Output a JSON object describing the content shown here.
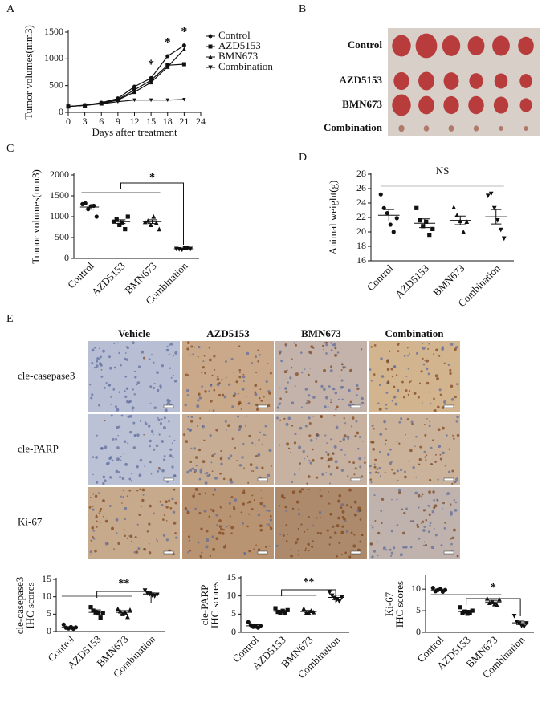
{
  "chart_data": [
    {
      "type": "line",
      "panel": "A",
      "xlabel": "Days after treatment",
      "ylabel": "Tumor volumes(mm3)",
      "x": [
        0,
        3,
        6,
        9,
        12,
        15,
        18,
        21
      ],
      "xlim": [
        0,
        24
      ],
      "xticks": [
        0,
        3,
        6,
        9,
        12,
        15,
        18,
        21,
        24
      ],
      "ylim": [
        0,
        1500
      ],
      "yticks": [
        0,
        500,
        1000,
        1500
      ],
      "series": [
        {
          "name": "Control",
          "color": "#111111",
          "values": [
            110,
            135,
            180,
            260,
            480,
            640,
            1050,
            1250
          ]
        },
        {
          "name": "AZD5153",
          "color": "#111111",
          "values": [
            110,
            130,
            170,
            240,
            420,
            600,
            880,
            900
          ]
        },
        {
          "name": "BMN673",
          "color": "#111111",
          "values": [
            110,
            130,
            165,
            230,
            380,
            560,
            850,
            1180
          ]
        },
        {
          "name": "Combination",
          "color": "#111111",
          "values": [
            110,
            130,
            160,
            200,
            230,
            230,
            230,
            240
          ]
        }
      ],
      "annotations": [
        {
          "text": "*",
          "x": 15
        },
        {
          "text": "*",
          "x": 18
        },
        {
          "text": "*",
          "x": 21
        }
      ]
    },
    {
      "type": "dot",
      "panel": "C",
      "ylabel": "Tumor volumes(mm3)",
      "categories": [
        "Control",
        "AZD5153",
        "BMN673",
        "Combination"
      ],
      "ylim": [
        0,
        2000
      ],
      "yticks": [
        0,
        500,
        1000,
        1500,
        2000
      ],
      "points": [
        [
          1300,
          1320,
          1180,
          1250,
          1260,
          1000
        ],
        [
          880,
          950,
          800,
          860,
          700,
          1000
        ],
        [
          870,
          900,
          800,
          1000,
          850,
          700
        ],
        [
          230,
          220,
          210,
          240,
          250,
          230
        ]
      ],
      "means": [
        1230,
        880,
        880,
        230
      ],
      "errors": [
        50,
        45,
        45,
        10
      ],
      "annotation": "*"
    },
    {
      "type": "dot",
      "panel": "D",
      "ylabel": "Animal weight(g)",
      "categories": [
        "Control",
        "AZD5153",
        "BMN673",
        "Combination"
      ],
      "ylim": [
        16,
        28
      ],
      "yticks": [
        16,
        18,
        20,
        22,
        24,
        26,
        28
      ],
      "points": [
        [
          25.2,
          23.3,
          22.6,
          21.0,
          20.0,
          21.9
        ],
        [
          23.3,
          21.6,
          20.8,
          21.4,
          19.6,
          20.4
        ],
        [
          23.4,
          22.3,
          21.5,
          20.0,
          21.4
        ],
        [
          25.0,
          25.3,
          23.3,
          21.6,
          20.3,
          19.1
        ]
      ],
      "means": [
        22.3,
        21.2,
        21.6,
        22.1
      ],
      "errors": [
        0.8,
        0.6,
        0.6,
        1.0
      ],
      "annotation": "NS"
    },
    {
      "type": "dot",
      "ylabel": [
        "cle-casepase3",
        "IHC scores"
      ],
      "categories": [
        "Control",
        "AZD5153",
        "BMN673",
        "Combination"
      ],
      "ylim": [
        0,
        15
      ],
      "yticks": [
        0,
        5,
        10,
        15
      ],
      "points": [
        [
          2.0,
          1.1,
          0.9,
          1.3,
          0.8,
          1.2
        ],
        [
          7.0,
          6.0,
          5.5,
          5.2,
          4.0,
          5.3
        ],
        [
          6.5,
          5.8,
          5.0,
          5.5,
          4.2,
          6.2
        ],
        [
          11.8,
          11.0,
          10.8,
          10.4,
          10.2,
          10.6
        ]
      ],
      "means": [
        1.2,
        5.5,
        5.5,
        10.8
      ],
      "errors": [
        0.2,
        0.7,
        0.5,
        0.3
      ],
      "annotation": "**"
    },
    {
      "type": "dot",
      "ylabel": [
        "cle-PARP",
        "IHC scores"
      ],
      "categories": [
        "Control",
        "AZD5153",
        "BMN673",
        "Combination"
      ],
      "ylim": [
        0,
        15
      ],
      "yticks": [
        0,
        5,
        10,
        15
      ],
      "points": [
        [
          2.8,
          2.0,
          1.5,
          1.6,
          1.3,
          1.8
        ],
        [
          6.6,
          5.6,
          5.4,
          5.9,
          5.2,
          6.1
        ],
        [
          6.5,
          5.2,
          5.4,
          5.9,
          5.5
        ],
        [
          11.0,
          10.1,
          9.4,
          9.0,
          8.5,
          9.6
        ]
      ],
      "means": [
        1.8,
        5.8,
        5.7,
        9.6
      ],
      "errors": [
        0.3,
        0.3,
        0.3,
        0.6
      ],
      "annotation": "**"
    },
    {
      "type": "dot",
      "ylabel": [
        "Ki-67",
        "IHC scores"
      ],
      "categories": [
        "Control",
        "AZD5153",
        "BMN673",
        "Combination"
      ],
      "ylim": [
        0,
        13
      ],
      "yticks": [
        0,
        5,
        10
      ],
      "points": [
        [
          10.3,
          9.5,
          9.8,
          10.0,
          9.4,
          9.8
        ],
        [
          5.8,
          4.4,
          4.8,
          4.3,
          4.5,
          5.0
        ],
        [
          7.8,
          6.8,
          7.0,
          6.5,
          6.3,
          7.6
        ],
        [
          3.8,
          2.5,
          2.0,
          1.5,
          1.3,
          2.1
        ]
      ],
      "means": [
        9.8,
        4.8,
        7.0,
        2.2
      ],
      "errors": [
        0.2,
        0.3,
        0.4,
        0.4
      ],
      "annotation": "*"
    }
  ],
  "photo_panel": {
    "panel": "B",
    "rows": [
      "Control",
      "AZD5153",
      "BMN673",
      "Combination"
    ]
  },
  "ihc_panel": {
    "panel": "E",
    "columns": [
      "Vehicle",
      "AZD5153",
      "BMN673",
      "Combination"
    ],
    "rows": [
      "cle-casepase3",
      "cle-PARP",
      "Ki-67"
    ]
  }
}
